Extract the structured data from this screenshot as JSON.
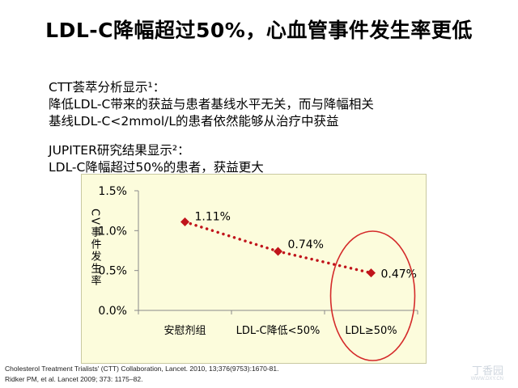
{
  "slide": {
    "title": "LDL-C降幅超过50%，心血管事件发生率更低",
    "block1": {
      "heading": "CTT荟萃分析显示¹：",
      "lines": [
        "降低LDL-C带来的获益与患者基线水平无关，而与降幅相关",
        "基线LDL-C<2mmol/L的患者依然能够从治疗中获益"
      ]
    },
    "block2": {
      "heading": "JUPITER研究结果显示²：",
      "lines": [
        "LDL-C降幅超过50%的患者，获益更大"
      ]
    },
    "references": [
      "Cholesterol Treatment Trialists' (CTT) Collaboration, Lancet. 2010, 13;376(9753):1670-81.",
      "Ridker PM, et al. Lancet 2009; 373: 1175–82."
    ],
    "watermark": "丁香园",
    "watermark_url": "WWW.DXY.CN"
  },
  "chart_data": {
    "type": "line",
    "categories": [
      "安慰剂组",
      "LDL-C降低<50%",
      "LDL≥50%"
    ],
    "series": [
      {
        "values": [
          1.11,
          0.74,
          0.47
        ],
        "color": "#c0141b"
      }
    ],
    "data_labels": [
      "1.11%",
      "0.74%",
      "0.47%"
    ],
    "ylabel": "CV事件发生率",
    "ylim": [
      0,
      1.5
    ],
    "yticks": [
      0,
      0.5,
      1.0,
      1.5
    ],
    "ytick_labels": [
      "0.0%",
      "0.5%",
      "1.0%",
      "1.5%"
    ],
    "line_style": "dotted",
    "highlight_category": "LDL≥50%",
    "highlight_color": "#d42a2a",
    "grid": false
  }
}
